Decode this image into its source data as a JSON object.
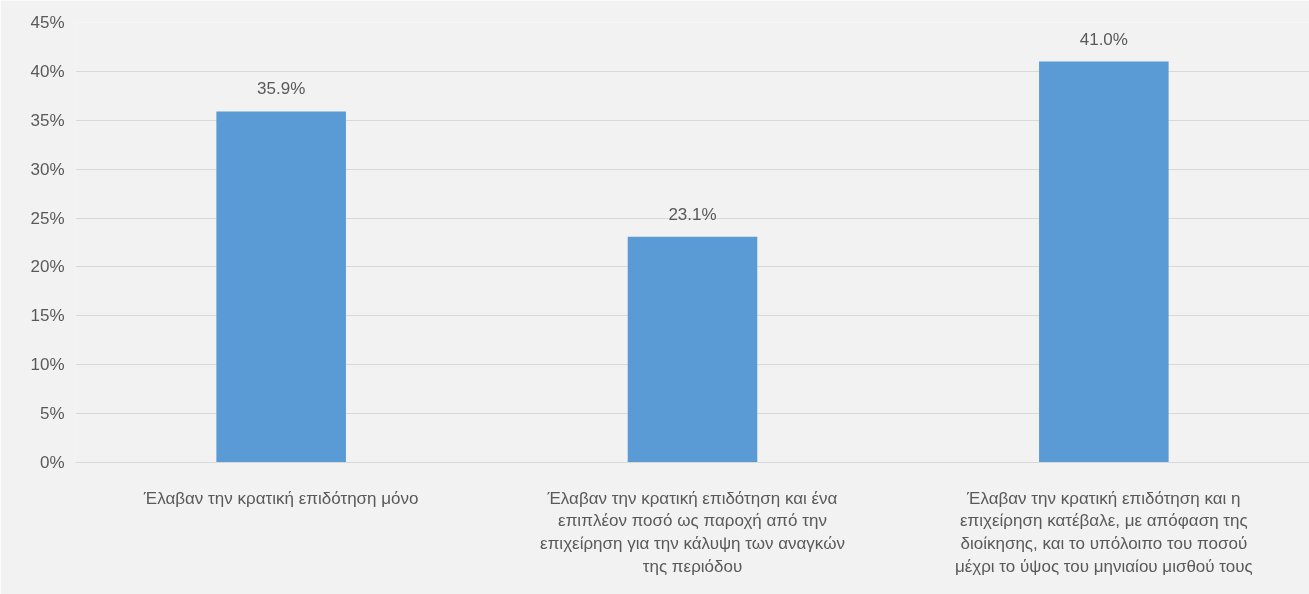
{
  "chart_data": {
    "type": "bar",
    "categories": [
      "Έλαβαν την κρατική επιδότηση μόνο",
      "Έλαβαν την κρατική επιδότηση και ένα\nεπιπλέον ποσό ως παροχή από την\nεπιχείρηση για την κάλυψη των αναγκών\nτης περιόδου",
      "Έλαβαν την κρατική επιδότηση και η\nεπιχείρηση κατέβαλε, με απόφαση της\nδιοίκησης, και το υπόλοιπο του ποσού\nμέχρι το ύψος του μηνιαίου μισθού τους"
    ],
    "values": [
      35.9,
      23.1,
      41.0
    ],
    "value_labels": [
      "35.9%",
      "23.1%",
      "41.0%"
    ],
    "color": "#5b9bd5",
    "ylim": [
      0,
      45
    ],
    "yticks": [
      {
        "value": 0,
        "label": "0%"
      },
      {
        "value": 5,
        "label": "5%"
      },
      {
        "value": 10,
        "label": "10%"
      },
      {
        "value": 15,
        "label": "15%"
      },
      {
        "value": 20,
        "label": "20%"
      },
      {
        "value": 25,
        "label": "25%"
      },
      {
        "value": 30,
        "label": "30%"
      },
      {
        "value": 35,
        "label": "35%"
      },
      {
        "value": 40,
        "label": "40%"
      },
      {
        "value": 45,
        "label": "45%"
      }
    ],
    "grid": "y"
  }
}
